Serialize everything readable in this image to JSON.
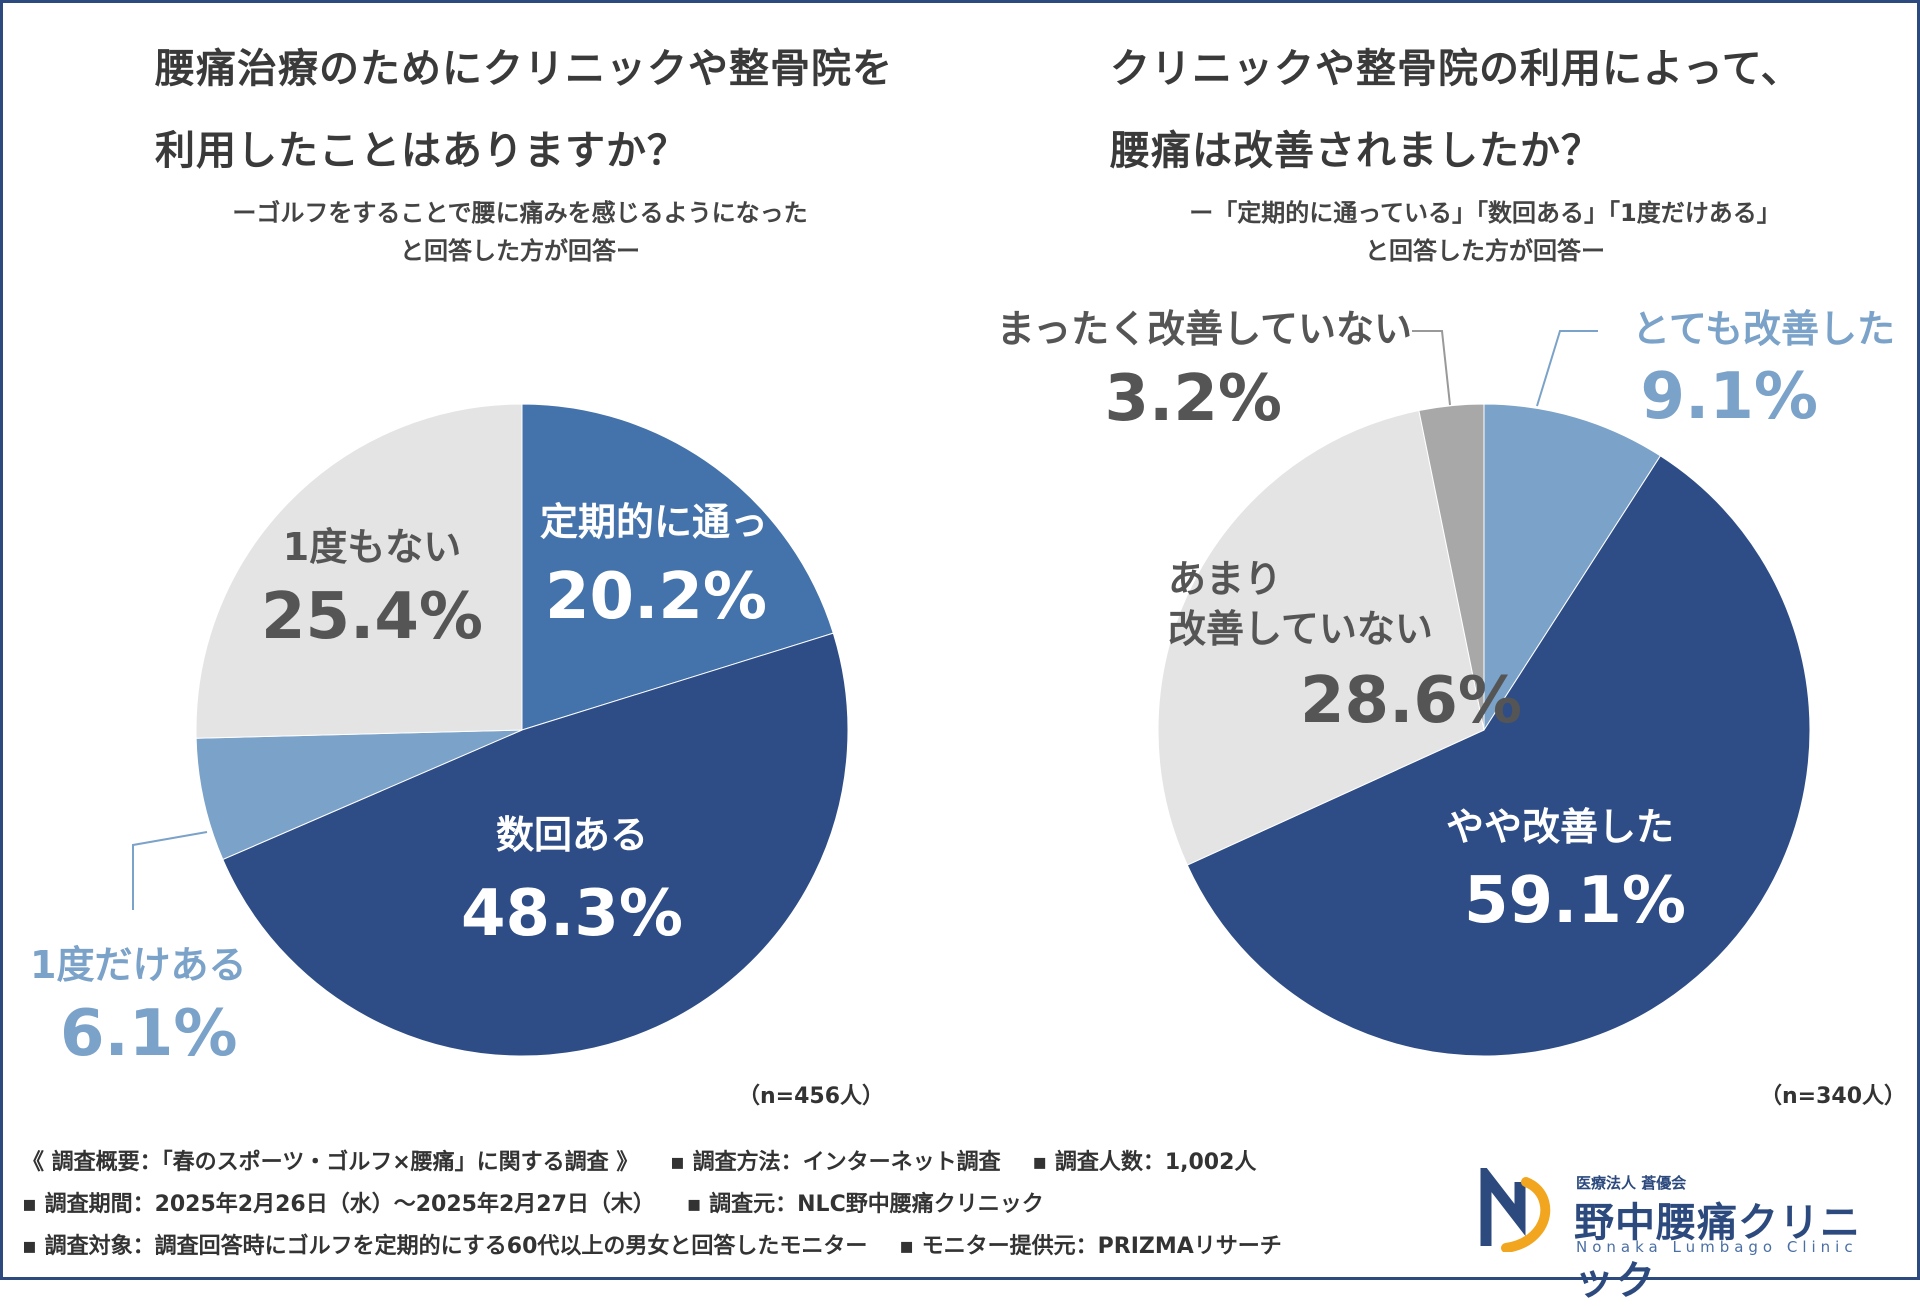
{
  "left": {
    "title_line1": "腰痛治療のためにクリニックや整骨院を",
    "title_line2": "利用したことはありますか？",
    "subtitle_line1": "ーゴルフをすることで腰に痛みを感じるようになった",
    "subtitle_line2": "と回答した方が回答ー",
    "n_label": "（n=456人）"
  },
  "right": {
    "title_line1": "クリニックや整骨院の利用によって、",
    "title_line2": "腰痛は改善されましたか？",
    "subtitle_line1": "ー「定期的に通っている」「数回ある」「1度だけある」",
    "subtitle_line2": "と回答した方が回答ー",
    "n_label": "（n=340人）"
  },
  "chart_data": [
    {
      "type": "pie",
      "title": "腰痛治療のためにクリニックや整骨院を利用したことはありますか？",
      "slices": [
        {
          "label": "定期的に通っている",
          "value": 20.2,
          "value_label": "20.2%",
          "color": "#4472aa",
          "text_color": "#ffffff"
        },
        {
          "label": "数回ある",
          "value": 48.3,
          "value_label": "48.3%",
          "color": "#2e4d86",
          "text_color": "#ffffff"
        },
        {
          "label": "1度だけある",
          "value": 6.1,
          "value_label": "6.1%",
          "color": "#7ba2c8",
          "text_color": "#7ba2c8"
        },
        {
          "label": "1度もない",
          "value": 25.4,
          "value_label": "25.4%",
          "color": "#e4e4e4",
          "text_color": "#555555"
        }
      ]
    },
    {
      "type": "pie",
      "title": "クリニックや整骨院の利用によって、腰痛は改善されましたか？",
      "slices": [
        {
          "label": "とても改善した",
          "value": 9.1,
          "value_label": "9.1%",
          "color": "#7ba2c8",
          "text_color": "#7ba2c8"
        },
        {
          "label": "やや改善した",
          "value": 59.1,
          "value_label": "59.1%",
          "color": "#2e4d86",
          "text_color": "#ffffff"
        },
        {
          "label": "あまり改善していない",
          "label_lines": [
            "あまり",
            "改善していない"
          ],
          "value": 28.6,
          "value_label": "28.6%",
          "color": "#e4e4e4",
          "text_color": "#555555"
        },
        {
          "label": "まったく改善していない",
          "value": 3.2,
          "value_label": "3.2%",
          "color": "#a8a8a8",
          "text_color": "#555555"
        }
      ]
    }
  ],
  "footer": {
    "line1": [
      "《 調査概要：「春のスポーツ・ゴルフ×腰痛」に関する調査 》",
      "▪ 調査方法：インターネット調査",
      "▪ 調査人数：1,002人"
    ],
    "line2": [
      "▪ 調査期間：2025年2月26日（水）～2025年2月27日（木）",
      "▪ 調査元：NLC野中腰痛クリニック"
    ],
    "line3": [
      "▪ 調査対象：調査回答時にゴルフを定期的にする60代以上の男女と回答したモニター",
      "▪ モニター提供元：PRIZMAリサーチ"
    ]
  },
  "logo": {
    "org": "医療法人 蒼優会",
    "name": "野中腰痛クリニック",
    "english": "Nonaka Lumbago Clinic"
  }
}
